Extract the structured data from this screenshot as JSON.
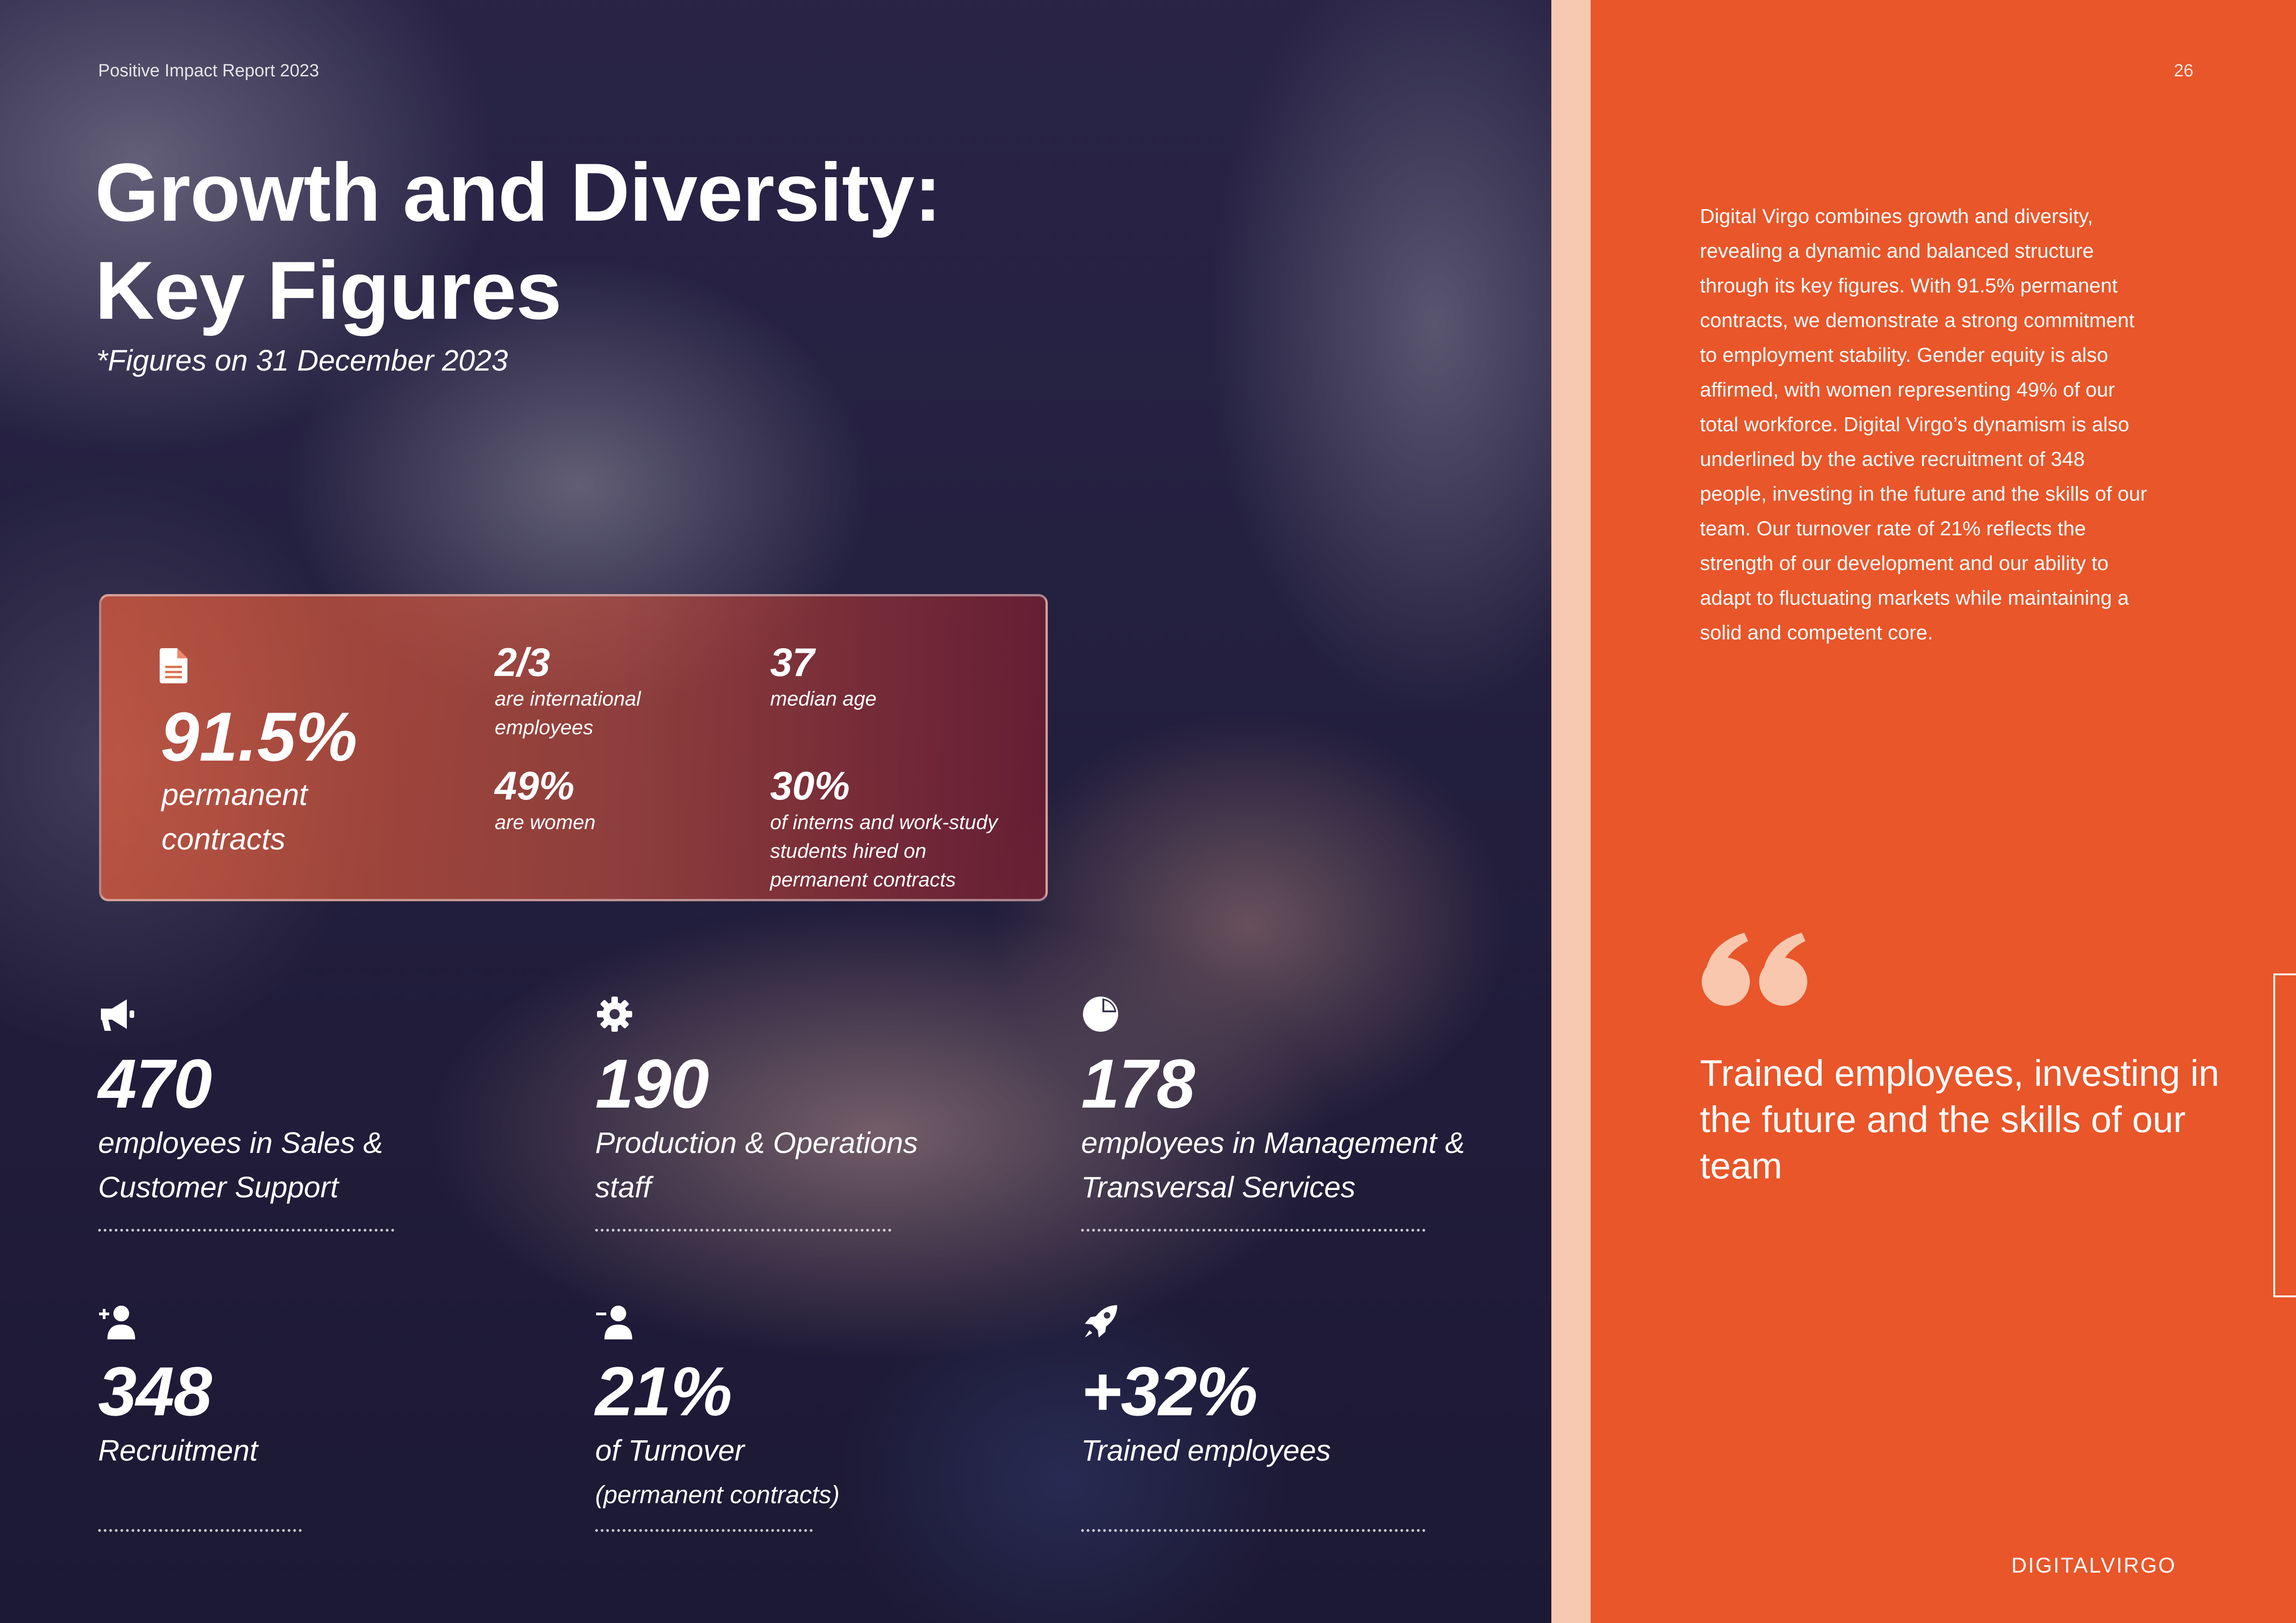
{
  "header": {
    "report_title": "Positive Impact Report 2023",
    "page_number": "26"
  },
  "title": {
    "line1": "Growth and Diversity:",
    "line2": "Key Figures"
  },
  "subtitle": "*Figures on 31 December 2023",
  "highlight": {
    "main": {
      "value": "91.5%",
      "label": "permanent contracts",
      "icon": "document-icon"
    },
    "items": [
      {
        "value": "2/3",
        "label": "are international employees"
      },
      {
        "value": "37",
        "label": "median age"
      },
      {
        "value": "49%",
        "label": "are women"
      },
      {
        "value": "30%",
        "label": "of interns and work-study students hired on permanent contracts"
      }
    ]
  },
  "stats": [
    {
      "icon": "megaphone-icon",
      "value": "470",
      "label": "employees in Sales & Customer Support"
    },
    {
      "icon": "gear-icon",
      "value": "190",
      "label": "Production & Operations staff"
    },
    {
      "icon": "pie-chart-icon",
      "value": "178",
      "label": "employees in Management & Transversal Services"
    },
    {
      "icon": "user-plus-icon",
      "value": "348",
      "label": "Recruitment"
    },
    {
      "icon": "user-minus-icon",
      "value": "21%",
      "label": "of Turnover",
      "sub": "(permanent contracts)"
    },
    {
      "icon": "rocket-icon",
      "value": "+32%",
      "label": "Trained employees"
    }
  ],
  "right": {
    "body": "Digital Virgo combines growth and diversity, revealing a dynamic and balanced structure through its key figures. With 91.5% permanent contracts, we demonstrate a strong commitment to employment stability. Gender equity is also affirmed, with women representing 49% of our total workforce. Digital Virgo’s dynamism is also underlined by the active recruitment of 348 people, investing in the future and the skills of our team. Our turnover rate of 21% reflects the strength of our development and our ability to adapt to fluctuating markets while maintaining a solid and competent core.",
    "quote": "Trained employees, investing in the future and the skills of our team",
    "logo": "DIGITALVIRGO"
  },
  "colors": {
    "accent": "#e8562a",
    "strip": "#f7c9b0",
    "dark": "#231f3c"
  }
}
